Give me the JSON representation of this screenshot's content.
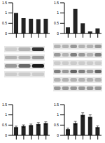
{
  "chart_data": [
    {
      "type": "bar",
      "categories": [
        null,
        null,
        null,
        null,
        null
      ],
      "values": [
        1.0,
        0.75,
        0.72,
        0.7,
        0.72
      ],
      "color": "#222222",
      "ylim": [
        0,
        1.5
      ],
      "yticks": [
        0,
        0.5,
        1,
        1.5
      ],
      "grid": false
    },
    {
      "type": "bar",
      "categories": [
        null,
        null,
        null,
        null,
        null
      ],
      "values": [
        0.3,
        1.2,
        0.5,
        0.1,
        0.25
      ],
      "color": "#222222",
      "ylim": [
        0,
        1.5
      ],
      "yticks": [
        0,
        0.5,
        1,
        1.5
      ],
      "grid": false
    },
    {
      "type": "bar",
      "categories": [
        null,
        null,
        null,
        null,
        null
      ],
      "values": [
        0.4,
        0.45,
        0.5,
        0.55,
        0.6
      ],
      "errors": [
        0.05,
        0.06,
        0.05,
        0.07,
        0.06
      ],
      "color": "#222222",
      "ylim": [
        0,
        1.5
      ],
      "yticks": [
        0,
        0.5,
        1,
        1.5
      ],
      "grid": false
    },
    {
      "type": "bar",
      "categories": [
        null,
        null,
        null,
        null,
        null
      ],
      "values": [
        0.3,
        0.6,
        1.0,
        0.9,
        0.4
      ],
      "errors": [
        0.05,
        0.08,
        0.1,
        0.1,
        0.06
      ],
      "color": "#222222",
      "ylim": [
        0,
        1.5
      ],
      "yticks": [
        0,
        0.5,
        1,
        1.5
      ],
      "grid": false
    }
  ],
  "blots": [
    {
      "rows": [
        [
          0.2,
          0.3,
          0.8
        ],
        [
          0.3,
          0.3,
          0.4
        ],
        [
          0.4,
          0.6,
          0.9
        ],
        [
          0.2,
          0.2,
          0.2
        ]
      ]
    },
    {
      "rows": [
        [
          0.3,
          0.3,
          0.4,
          0.3,
          0.3,
          0.4
        ],
        [
          0.4,
          0.3,
          0.5,
          0.4,
          0.3,
          0.5
        ],
        [
          0.2,
          0.2,
          0.2,
          0.2,
          0.2,
          0.2
        ],
        [
          0.5,
          0.4,
          0.6,
          0.5,
          0.4,
          0.6
        ],
        [
          0.3,
          0.3,
          0.3,
          0.3,
          0.3,
          0.3
        ],
        [
          0.4,
          0.4,
          0.4,
          0.4,
          0.4,
          0.4
        ]
      ]
    }
  ]
}
